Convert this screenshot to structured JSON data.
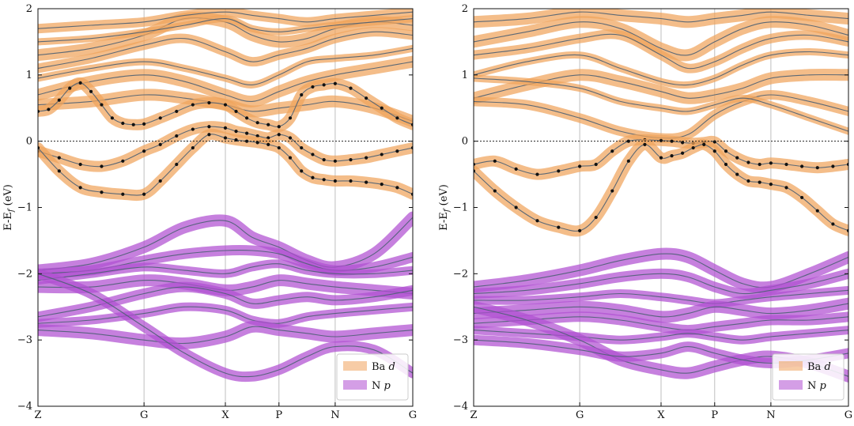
{
  "colors": {
    "ba_d": "#f0a35c",
    "n_p": "#b04fd1",
    "band_line": "#4b5f73",
    "highlight_dot": "#111111",
    "grid": "#bfbfbf"
  },
  "chart_data": [
    {
      "type": "line",
      "subtype": "band-structure-fatband",
      "ylabel": "E-E_f (eV)",
      "ylim": [
        -4,
        2
      ],
      "yticks": [
        -4,
        -3,
        -2,
        -1,
        0,
        1,
        2
      ],
      "ytick_labels": [
        "−4",
        "−3",
        "−2",
        "−1",
        "0",
        "1",
        "2"
      ],
      "kpoints": [
        "Z",
        "G",
        "X",
        "P",
        "N",
        "G"
      ],
      "fermi_level": 0,
      "legend": {
        "position": "bottom-right",
        "entries": [
          {
            "label": "Ba",
            "italic": "d",
            "color_key": "ba_d"
          },
          {
            "label": "N",
            "italic": "p",
            "color_key": "n_p"
          }
        ]
      },
      "highlighted_bands": [
        {
          "x": [
            0,
            0.1,
            0.2,
            0.3,
            0.4,
            0.5,
            0.6,
            0.7,
            0.8,
            0.9,
            1.0,
            1.2,
            1.4,
            1.6,
            1.8,
            2.0,
            2.2,
            2.4,
            2.6,
            2.8,
            3.0,
            3.2,
            3.4,
            3.6,
            3.8,
            4.0,
            4.2,
            4.4,
            4.6,
            4.8,
            5.0
          ],
          "y": [
            0.45,
            0.48,
            0.62,
            0.8,
            0.88,
            0.75,
            0.55,
            0.35,
            0.27,
            0.25,
            0.26,
            0.35,
            0.45,
            0.55,
            0.58,
            0.55,
            0.45,
            0.35,
            0.28,
            0.25,
            0.22,
            0.35,
            0.7,
            0.82,
            0.85,
            0.87,
            0.8,
            0.65,
            0.5,
            0.35,
            0.25
          ]
        },
        {
          "x": [
            0,
            0.2,
            0.4,
            0.6,
            0.8,
            1.0,
            1.2,
            1.4,
            1.6,
            1.8,
            2.0,
            2.2,
            2.4,
            2.6,
            2.8,
            3.0,
            3.2,
            3.4,
            3.6,
            3.8,
            4.0,
            4.2,
            4.4,
            4.6,
            4.8,
            5.0
          ],
          "y": [
            -0.15,
            -0.25,
            -0.35,
            -0.38,
            -0.3,
            -0.15,
            -0.05,
            0.08,
            0.18,
            0.22,
            0.2,
            0.15,
            0.12,
            0.08,
            0.05,
            0.1,
            0.05,
            -0.1,
            -0.2,
            -0.28,
            -0.3,
            -0.28,
            -0.25,
            -0.2,
            -0.15,
            -0.1
          ]
        },
        {
          "x": [
            0,
            0.2,
            0.4,
            0.6,
            0.8,
            1.0,
            1.2,
            1.4,
            1.6,
            1.8,
            2.0,
            2.2,
            2.4,
            2.6,
            2.8,
            3.0,
            3.2,
            3.4,
            3.6,
            3.8,
            4.0,
            4.2,
            4.4,
            4.6,
            4.8,
            5.0
          ],
          "y": [
            -0.1,
            -0.45,
            -0.7,
            -0.77,
            -0.8,
            -0.8,
            -0.6,
            -0.35,
            -0.1,
            0.1,
            0.05,
            0.02,
            0.0,
            -0.02,
            -0.05,
            -0.1,
            -0.25,
            -0.45,
            -0.55,
            -0.58,
            -0.6,
            -0.6,
            -0.62,
            -0.65,
            -0.7,
            -0.8
          ]
        }
      ],
      "other_conduction_bands": [
        [
          1.3,
          1.4,
          1.6,
          1.85,
          1.8,
          1.6,
          1.5,
          1.55,
          1.7,
          1.8,
          1.75
        ],
        [
          1.1,
          1.25,
          1.45,
          1.55,
          1.35,
          1.2,
          1.3,
          1.4,
          1.55,
          1.65,
          1.6
        ],
        [
          0.95,
          1.1,
          1.2,
          1.1,
          0.95,
          0.85,
          1.0,
          1.2,
          1.25,
          1.3,
          1.4
        ],
        [
          0.7,
          0.9,
          1.0,
          0.9,
          0.7,
          0.6,
          0.75,
          0.9,
          1.0,
          1.1,
          1.2
        ],
        [
          1.7,
          1.75,
          1.8,
          1.9,
          1.95,
          1.9,
          1.85,
          1.8,
          1.85,
          1.9,
          1.95
        ],
        [
          1.5,
          1.55,
          1.65,
          1.75,
          1.85,
          1.7,
          1.65,
          1.7,
          1.75,
          1.8,
          1.85
        ],
        [
          0.55,
          0.6,
          0.7,
          0.65,
          0.55,
          0.45,
          0.5,
          0.55,
          0.6,
          0.5,
          0.3
        ]
      ],
      "valence_bands": [
        [
          -1.95,
          -1.85,
          -1.6,
          -1.3,
          -1.2,
          -1.45,
          -1.6,
          -1.8,
          -1.9,
          -1.7,
          -1.15
        ],
        [
          -2.0,
          -1.95,
          -1.8,
          -1.7,
          -1.65,
          -1.65,
          -1.7,
          -1.85,
          -1.95,
          -1.9,
          -1.75
        ],
        [
          -2.1,
          -2.0,
          -1.9,
          -1.95,
          -2.0,
          -1.9,
          -1.85,
          -1.95,
          -2.0,
          -2.0,
          -1.95
        ],
        [
          -2.2,
          -2.2,
          -2.1,
          -2.15,
          -2.25,
          -2.2,
          -2.1,
          -2.15,
          -2.2,
          -2.25,
          -2.3
        ],
        [
          -2.65,
          -2.5,
          -2.3,
          -2.2,
          -2.3,
          -2.45,
          -2.4,
          -2.35,
          -2.4,
          -2.35,
          -2.25
        ],
        [
          -2.75,
          -2.7,
          -2.6,
          -2.5,
          -2.55,
          -2.7,
          -2.75,
          -2.65,
          -2.6,
          -2.55,
          -2.5
        ],
        [
          -2.85,
          -2.9,
          -3.0,
          -3.05,
          -2.95,
          -2.8,
          -2.85,
          -2.9,
          -2.95,
          -2.9,
          -2.85
        ],
        [
          -2.0,
          -2.3,
          -2.8,
          -3.2,
          -3.5,
          -3.55,
          -3.45,
          -3.25,
          -3.1,
          -3.15,
          -3.5
        ]
      ]
    },
    {
      "type": "line",
      "subtype": "band-structure-fatband",
      "ylabel": "E-E_f (eV)",
      "ylim": [
        -4,
        2
      ],
      "yticks": [
        -4,
        -3,
        -2,
        -1,
        0,
        1,
        2
      ],
      "ytick_labels": [
        "−4",
        "−3",
        "−2",
        "−1",
        "0",
        "1",
        "2"
      ],
      "kpoints": [
        "Z",
        "G",
        "X",
        "P",
        "N",
        "G"
      ],
      "fermi_level": 0,
      "legend": {
        "position": "bottom-right",
        "entries": [
          {
            "label": "Ba",
            "italic": "d",
            "color_key": "ba_d"
          },
          {
            "label": "N",
            "italic": "p",
            "color_key": "n_p"
          }
        ]
      },
      "highlighted_bands": [
        {
          "x": [
            0,
            0.2,
            0.4,
            0.6,
            0.8,
            1.0,
            1.2,
            1.4,
            1.6,
            1.8,
            2.0,
            2.2,
            2.4,
            2.6,
            2.8,
            3.0,
            3.2,
            3.4,
            3.6,
            3.8,
            4.0,
            4.2,
            4.4,
            4.6,
            4.8,
            5.0
          ],
          "y": [
            -0.35,
            -0.3,
            -0.42,
            -0.5,
            -0.45,
            -0.38,
            -0.35,
            -0.15,
            0.0,
            0.02,
            0.01,
            0.0,
            -0.02,
            -0.03,
            -0.02,
            -0.01,
            -0.15,
            -0.25,
            -0.32,
            -0.35,
            -0.33,
            -0.35,
            -0.38,
            -0.4,
            -0.38,
            -0.35
          ]
        },
        {
          "x": [
            0,
            0.2,
            0.4,
            0.6,
            0.8,
            1.0,
            1.2,
            1.4,
            1.6,
            1.8,
            2.0,
            2.2,
            2.4,
            2.6,
            2.8,
            3.0,
            3.2,
            3.4,
            3.6,
            3.8,
            4.0,
            4.2,
            4.4,
            4.6,
            4.8,
            5.0
          ],
          "y": [
            -0.45,
            -0.75,
            -1.0,
            -1.2,
            -1.3,
            -1.35,
            -1.15,
            -0.75,
            -0.3,
            -0.05,
            -0.25,
            -0.22,
            -0.18,
            -0.1,
            -0.05,
            -0.15,
            -0.35,
            -0.5,
            -0.6,
            -0.62,
            -0.65,
            -0.7,
            -0.85,
            -1.05,
            -1.25,
            -1.35
          ]
        }
      ],
      "other_conduction_bands": [
        [
          1.5,
          1.65,
          1.8,
          1.7,
          1.4,
          1.3,
          1.5,
          1.7,
          1.8,
          1.75,
          1.6
        ],
        [
          1.3,
          1.4,
          1.55,
          1.6,
          1.3,
          1.1,
          1.2,
          1.4,
          1.55,
          1.6,
          1.5
        ],
        [
          1.0,
          1.2,
          1.3,
          1.1,
          0.9,
          0.85,
          0.95,
          1.15,
          1.3,
          1.35,
          1.3
        ],
        [
          0.65,
          0.85,
          1.0,
          0.9,
          0.75,
          0.65,
          0.7,
          0.8,
          0.95,
          1.0,
          1.0
        ],
        [
          0.6,
          0.55,
          0.35,
          0.15,
          0.05,
          0.1,
          0.4,
          0.6,
          0.7,
          0.6,
          0.45
        ],
        [
          0.95,
          0.9,
          0.8,
          0.6,
          0.5,
          0.45,
          0.55,
          0.65,
          0.55,
          0.35,
          0.15
        ],
        [
          1.8,
          1.85,
          1.95,
          1.9,
          1.85,
          1.8,
          1.85,
          1.9,
          1.95,
          1.9,
          1.85
        ]
      ],
      "valence_bands": [
        [
          -2.2,
          -2.1,
          -1.95,
          -1.8,
          -1.7,
          -1.75,
          -1.95,
          -2.15,
          -2.2,
          -2.0,
          -1.75
        ],
        [
          -2.3,
          -2.25,
          -2.15,
          -2.05,
          -2.0,
          -2.05,
          -2.2,
          -2.3,
          -2.25,
          -2.15,
          -2.0
        ],
        [
          -2.4,
          -2.4,
          -2.35,
          -2.3,
          -2.35,
          -2.4,
          -2.45,
          -2.4,
          -2.35,
          -2.3,
          -2.25
        ],
        [
          -2.6,
          -2.55,
          -2.5,
          -2.55,
          -2.65,
          -2.6,
          -2.5,
          -2.55,
          -2.6,
          -2.55,
          -2.45
        ],
        [
          -2.75,
          -2.7,
          -2.65,
          -2.7,
          -2.8,
          -2.85,
          -2.8,
          -2.75,
          -2.7,
          -2.7,
          -2.65
        ],
        [
          -2.85,
          -2.9,
          -2.95,
          -3.0,
          -2.95,
          -2.9,
          -2.95,
          -3.0,
          -2.95,
          -2.9,
          -2.85
        ],
        [
          -2.5,
          -2.7,
          -3.0,
          -3.3,
          -3.45,
          -3.5,
          -3.4,
          -3.3,
          -3.25,
          -3.35,
          -3.55
        ],
        [
          -3.0,
          -3.05,
          -3.15,
          -3.25,
          -3.2,
          -3.1,
          -3.2,
          -3.3,
          -3.35,
          -3.3,
          -3.2
        ]
      ]
    }
  ]
}
